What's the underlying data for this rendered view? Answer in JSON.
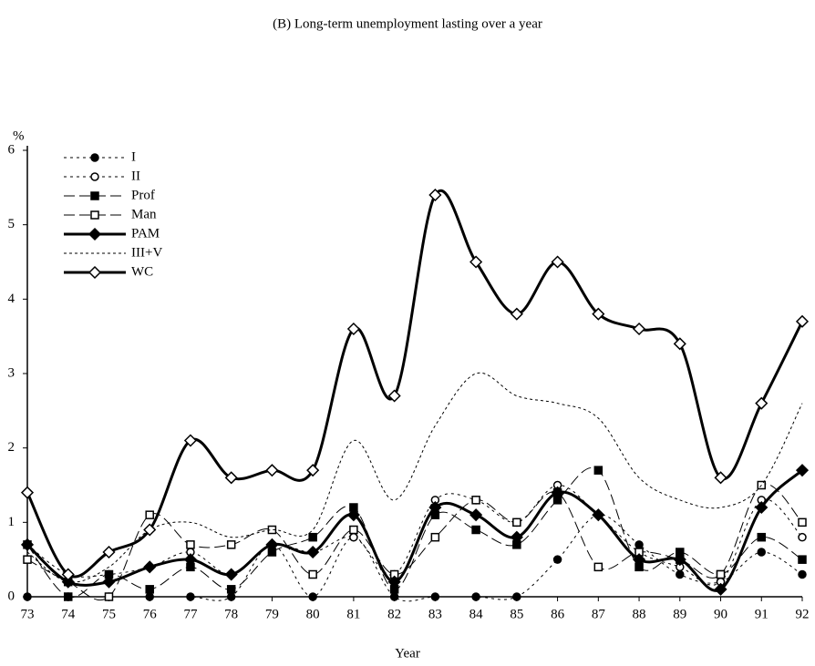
{
  "chart_data": {
    "type": "line",
    "title": "(B)  Long-term unemployment lasting over a year",
    "x_label": "Year",
    "y_label": "%",
    "categories": [
      "73",
      "74",
      "75",
      "76",
      "77",
      "78",
      "79",
      "80",
      "81",
      "82",
      "83",
      "84",
      "85",
      "86",
      "87",
      "88",
      "89",
      "90",
      "91",
      "92"
    ],
    "ylim": [
      0,
      6
    ],
    "yticks": [
      0,
      1,
      2,
      3,
      4,
      5,
      6
    ],
    "legend": "top-left",
    "series": [
      {
        "name": "I",
        "color": "#000000",
        "dash": "3,4",
        "width": 1,
        "marker": "circle-filled",
        "values": [
          0,
          0,
          0,
          0,
          0,
          0,
          0.7,
          0,
          0.8,
          0,
          0,
          0,
          0,
          0.5,
          1.1,
          0.7,
          0.3,
          0.2,
          0.6,
          0.3
        ]
      },
      {
        "name": "II",
        "color": "#000000",
        "dash": "3,4",
        "width": 1,
        "marker": "circle-open",
        "values": [
          0.7,
          0.3,
          0.3,
          0.4,
          0.6,
          0.3,
          0.7,
          0.6,
          0.8,
          0.3,
          1.3,
          1.3,
          1.0,
          1.5,
          1.1,
          0.6,
          0.4,
          0.2,
          1.3,
          0.8
        ]
      },
      {
        "name": "Prof",
        "color": "#000000",
        "dash": "12,5",
        "width": 1,
        "marker": "square-filled",
        "values": [
          0.7,
          0,
          0.3,
          0.1,
          0.4,
          0.1,
          0.6,
          0.8,
          1.2,
          0.1,
          1.1,
          0.9,
          0.7,
          1.3,
          1.7,
          0.4,
          0.6,
          0.3,
          0.8,
          0.5
        ]
      },
      {
        "name": "Man",
        "color": "#000000",
        "dash": "12,5",
        "width": 1,
        "marker": "square-open",
        "values": [
          0.5,
          0.2,
          0,
          1.1,
          0.7,
          0.7,
          0.9,
          0.3,
          0.9,
          0.3,
          0.8,
          1.3,
          1.0,
          1.4,
          0.4,
          0.6,
          0.5,
          0.3,
          1.5,
          1.0
        ]
      },
      {
        "name": "PAM",
        "color": "#000000",
        "dash": "none",
        "width": 3,
        "marker": "diamond-filled",
        "values": [
          0.7,
          0.2,
          0.2,
          0.4,
          0.5,
          0.3,
          0.7,
          0.6,
          1.1,
          0.2,
          1.2,
          1.1,
          0.8,
          1.4,
          1.1,
          0.5,
          0.5,
          0.1,
          1.2,
          1.7
        ]
      },
      {
        "name": "III+V",
        "color": "#000000",
        "dash": "3,3",
        "width": 1,
        "marker": "none",
        "values": [
          0.6,
          0.2,
          0.4,
          0.9,
          1.0,
          0.8,
          0.9,
          0.9,
          2.1,
          1.3,
          2.3,
          3.0,
          2.7,
          2.6,
          2.4,
          1.6,
          1.3,
          1.2,
          1.5,
          2.6
        ]
      },
      {
        "name": "WC",
        "color": "#000000",
        "dash": "none",
        "width": 3,
        "marker": "diamond-open",
        "values": [
          1.4,
          0.3,
          0.6,
          0.9,
          2.1,
          1.6,
          1.7,
          1.7,
          3.6,
          2.7,
          5.4,
          4.5,
          3.8,
          4.5,
          3.8,
          3.6,
          3.4,
          1.6,
          2.6,
          3.7
        ]
      }
    ]
  }
}
